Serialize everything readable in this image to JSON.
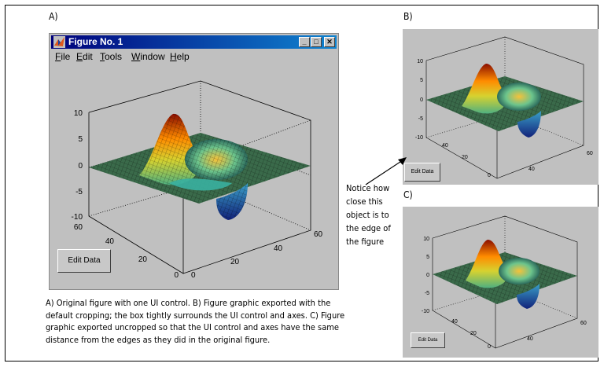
{
  "labels": {
    "a": "A)",
    "b": "B)",
    "c": "C)"
  },
  "window": {
    "title": "Figure No. 1",
    "menu": [
      "File",
      "Edit",
      "Tools",
      "Window",
      "Help"
    ],
    "menu_underline": [
      "F",
      "E",
      "T",
      "W",
      "H"
    ],
    "menu_rest": [
      "ile",
      "dit",
      "ools",
      "indow",
      "elp"
    ],
    "controls": {
      "minimize": "_",
      "maximize": "□",
      "close": "✕"
    }
  },
  "button": {
    "label": "Edit Data"
  },
  "axes": {
    "z_ticks": [
      "10",
      "5",
      "0",
      "-5",
      "-10"
    ],
    "y_ticks": [
      "60",
      "40",
      "20",
      "0"
    ],
    "x_ticks": [
      "0",
      "20",
      "40",
      "60"
    ]
  },
  "note": "Notice how close this object is to the edge of the figure",
  "caption": "A) Original figure with one UI control. B) Figure graphic exported with the default cropping; the box tightly surrounds the UI control and axes. C) Figure graphic exported uncropped so that the UI control and axes have the same distance from the edges as they did in the original figure.",
  "colors": {
    "titlebar": "#00007b",
    "panel": "#c0c0c0",
    "peak": "#c81e00",
    "valley": "#1c2f9a"
  }
}
